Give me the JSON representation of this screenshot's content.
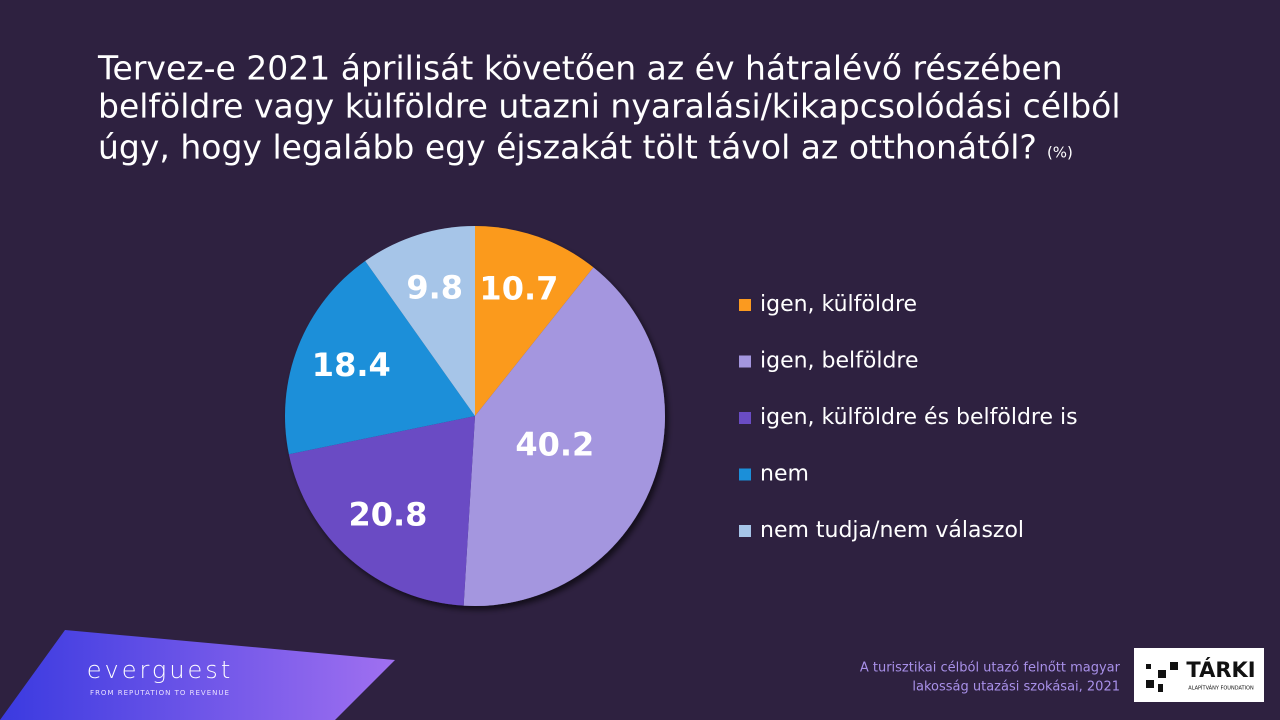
{
  "chart_data": {
    "type": "pie",
    "title_lines": [
      "Tervez-e 2021 áprilisát követően az év hátralévő részében",
      "belföldre vagy külföldre utazni nyaralási/kikapcsolódási célból",
      "úgy, hogy legalább egy éjszakát tölt távol az otthonától?"
    ],
    "unit_note": "(%)",
    "categories": [
      "igen, külföldre",
      "igen, belföldre",
      "igen, külföldre és belföldre is",
      "nem",
      "nem tudja/nem válaszol"
    ],
    "values": [
      10.7,
      40.2,
      20.8,
      18.4,
      9.8
    ],
    "colors": [
      "#fb9a1f",
      "#a496df",
      "#6a4cc4",
      "#1b8fd9",
      "#a6c5e8"
    ],
    "legend": "right"
  },
  "footer": {
    "brand": "everguest",
    "tagline": "FROM REPUTATION TO REVENUE",
    "source_lines": [
      "A turisztikai célból utazó felnőtt magyar",
      "lakosság utazási szokásai, 2021"
    ],
    "logo": "TÁRKI",
    "logo_sub": "ALAPÍTVÁNY FOUNDATION"
  }
}
